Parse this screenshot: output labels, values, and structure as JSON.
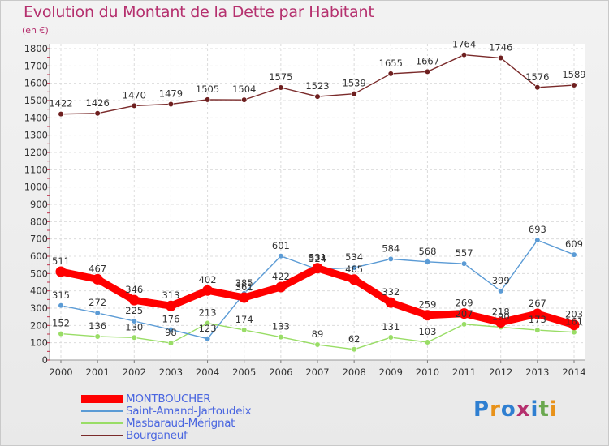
{
  "title": "Evolution du Montant de la Dette par Habitant",
  "subtitle": "(en €)",
  "brand": {
    "text": "Proxiti",
    "colors": [
      "#2f7fd1",
      "#e8921a",
      "#2f7fd1",
      "#b5306e",
      "#2f7fd1",
      "#6aa84f",
      "#e8921a"
    ]
  },
  "chart_data": {
    "type": "line",
    "x": [
      "2000",
      "2001",
      "2002",
      "2003",
      "2004",
      "2005",
      "2006",
      "2007",
      "2008",
      "2009",
      "2010",
      "2011",
      "2012",
      "2013",
      "2014"
    ],
    "ylim": [
      0,
      1800
    ],
    "yticks": [
      0,
      100,
      200,
      300,
      400,
      500,
      600,
      700,
      800,
      900,
      1000,
      1100,
      1200,
      1300,
      1400,
      1500,
      1600,
      1700,
      1800
    ],
    "grid": true,
    "legend_position": "bottom-left",
    "series": [
      {
        "name": "MONTBOUCHER",
        "color": "#ff0000",
        "values": [
          511,
          467,
          346,
          313,
          402,
          361,
          422,
          531,
          465,
          332,
          259,
          269,
          218,
          267,
          203
        ]
      },
      {
        "name": "Saint-Amand-Jartoudeix",
        "color": "#5b9bd5",
        "values": [
          315,
          272,
          225,
          176,
          123,
          385,
          601,
          524,
          534,
          584,
          568,
          557,
          399,
          693,
          609
        ]
      },
      {
        "name": "Masbaraud-Mérignat",
        "color": "#99dd66",
        "values": [
          152,
          136,
          130,
          98,
          213,
          174,
          133,
          89,
          62,
          131,
          103,
          207,
          190,
          173,
          161
        ]
      },
      {
        "name": "Bourganeuf",
        "color": "#7a2a2a",
        "values": [
          1422,
          1426,
          1470,
          1479,
          1505,
          1504,
          1575,
          1523,
          1539,
          1655,
          1667,
          1764,
          1746,
          1576,
          1589
        ]
      }
    ]
  }
}
